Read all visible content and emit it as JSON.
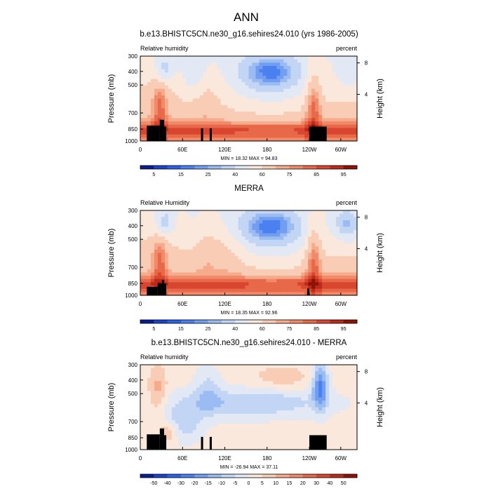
{
  "main_title": "ANN",
  "chart_data": [
    {
      "type": "heatmap",
      "title": "b.e13.BHISTC5CN.ne30_g16.sehires24.010 (yrs 1986-2005)",
      "left_label": "Relative humidity",
      "right_label": "percent",
      "xlabel": "",
      "ylabel": "Pressure (mb)",
      "y2label": "Height (km)",
      "x_ticks": [
        "0",
        "60E",
        "120E",
        "180",
        "120W",
        "60W"
      ],
      "y_ticks": [
        "300",
        "400",
        "500",
        "700",
        "850",
        "1000"
      ],
      "y2_ticks": [
        "8",
        "4"
      ],
      "stats": "MIN = 18.32  MAX = 94.83",
      "colorbar_labels": [
        "5",
        "15",
        "25",
        "40",
        "60",
        "75",
        "85",
        "95"
      ],
      "colorbar_colors": [
        "#0a1f8f",
        "#1d44c8",
        "#2e62e6",
        "#4a80f0",
        "#729ef2",
        "#9bbcf2",
        "#c2d5f4",
        "#e2e9f5",
        "#fbe8dd",
        "#f9cdb5",
        "#f6ac8c",
        "#f08a68",
        "#e8684a",
        "#d84630",
        "#bc2a1a",
        "#8f1208"
      ],
      "zmin": 18.32,
      "zmax": 94.83
    },
    {
      "type": "heatmap",
      "title": "MERRA",
      "left_label": "Relative Humidity",
      "right_label": "percent",
      "xlabel": "",
      "ylabel": "Pressure (mb)",
      "y2label": "Height (km)",
      "x_ticks": [
        "0",
        "60E",
        "120E",
        "180",
        "120W",
        "60W"
      ],
      "y_ticks": [
        "300",
        "400",
        "500",
        "700",
        "850",
        "1000"
      ],
      "y2_ticks": [
        "8",
        "4"
      ],
      "stats": "MIN = 18.35  MAX = 92.96",
      "colorbar_labels": [
        "5",
        "15",
        "25",
        "40",
        "60",
        "75",
        "85",
        "95"
      ],
      "colorbar_colors": [
        "#0a1f8f",
        "#1d44c8",
        "#2e62e6",
        "#4a80f0",
        "#729ef2",
        "#9bbcf2",
        "#c2d5f4",
        "#e2e9f5",
        "#fbe8dd",
        "#f9cdb5",
        "#f6ac8c",
        "#f08a68",
        "#e8684a",
        "#d84630",
        "#bc2a1a",
        "#8f1208"
      ],
      "zmin": 18.35,
      "zmax": 92.96
    },
    {
      "type": "heatmap",
      "title": "b.e13.BHISTC5CN.ne30_g16.sehires24.010 - MERRA",
      "left_label": "Relative humidity",
      "right_label": "percent",
      "xlabel": "",
      "ylabel": "Pressure (mb)",
      "y2label": "Height (km)",
      "x_ticks": [
        "0",
        "60E",
        "120E",
        "180",
        "120W",
        "60W"
      ],
      "y_ticks": [
        "300",
        "400",
        "500",
        "700",
        "850",
        "1000"
      ],
      "y2_ticks": [
        "8",
        "4"
      ],
      "stats": "MIN = -26.94  MAX = 37.11",
      "colorbar_labels": [
        "-50",
        "-40",
        "-30",
        "-20",
        "-15",
        "-10",
        "-5",
        "0",
        "5",
        "10",
        "15",
        "20",
        "30",
        "40",
        "50"
      ],
      "colorbar_colors": [
        "#0a1f8f",
        "#1d44c8",
        "#2e62e6",
        "#4a80f0",
        "#729ef2",
        "#9bbcf2",
        "#c2d5f4",
        "#e2e9f5",
        "#fbe8dd",
        "#f9cdb5",
        "#f6ac8c",
        "#f08a68",
        "#e8684a",
        "#d84630",
        "#bc2a1a",
        "#8f1208"
      ],
      "zmin": -26.94,
      "zmax": 37.11
    }
  ]
}
